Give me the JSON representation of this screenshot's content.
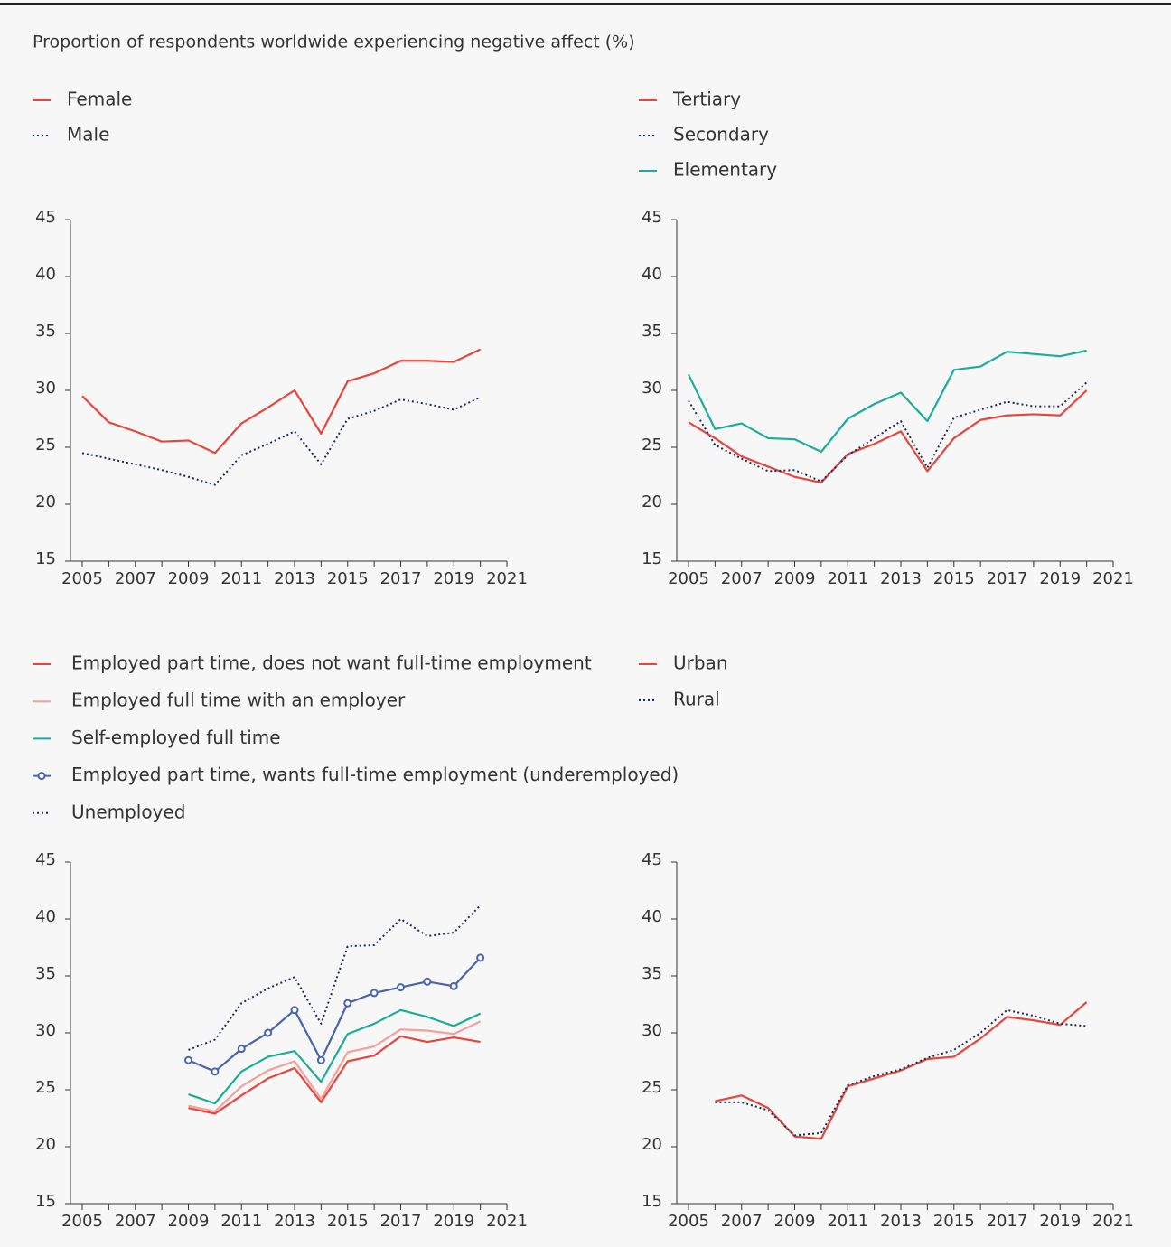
{
  "title": "Proportion of respondents worldwide experiencing negative affect (%)",
  "chart_data": [
    {
      "type": "line",
      "x": [
        2005,
        2006,
        2007,
        2008,
        2009,
        2010,
        2011,
        2012,
        2013,
        2014,
        2015,
        2016,
        2017,
        2018,
        2019,
        2020
      ],
      "series": [
        {
          "name": "Female",
          "color": "#e8453c",
          "dash": "solid",
          "values": [
            29.5,
            27.2,
            26.4,
            25.5,
            25.6,
            24.5,
            27.1,
            28.5,
            30.0,
            26.2,
            30.8,
            31.5,
            32.6,
            32.6,
            32.5,
            33.6
          ]
        },
        {
          "name": "Male",
          "color": "#1f2a5c",
          "dash": "dotted",
          "values": [
            24.5,
            24.0,
            23.5,
            23.0,
            22.4,
            21.7,
            24.3,
            25.3,
            26.4,
            23.5,
            27.5,
            28.2,
            29.2,
            28.8,
            28.3,
            29.4
          ]
        }
      ],
      "xlim": [
        2005,
        2021
      ],
      "xticks": [
        2005,
        2007,
        2009,
        2011,
        2013,
        2015,
        2017,
        2019,
        2021
      ],
      "ylim": [
        15,
        45
      ],
      "yticks": [
        15,
        20,
        25,
        30,
        35,
        40,
        45
      ]
    },
    {
      "type": "line",
      "x": [
        2005,
        2006,
        2007,
        2008,
        2009,
        2010,
        2011,
        2012,
        2013,
        2014,
        2015,
        2016,
        2017,
        2018,
        2019,
        2020
      ],
      "series": [
        {
          "name": "Tertiary",
          "color": "#e8453c",
          "dash": "solid",
          "values": [
            27.2,
            25.8,
            24.2,
            23.3,
            22.4,
            21.9,
            24.4,
            25.3,
            26.4,
            22.9,
            25.8,
            27.4,
            27.8,
            27.9,
            27.8,
            30.0
          ]
        },
        {
          "name": "Secondary",
          "color": "#1f2a5c",
          "dash": "dotted",
          "values": [
            29.1,
            25.2,
            24.0,
            22.9,
            23.0,
            22.0,
            24.3,
            25.8,
            27.3,
            23.2,
            27.6,
            28.3,
            29.0,
            28.6,
            28.6,
            30.7
          ]
        },
        {
          "name": "Elementary",
          "color": "#1aaf93",
          "dash": "solid",
          "values": [
            31.4,
            26.6,
            27.1,
            25.8,
            25.7,
            24.6,
            27.5,
            28.8,
            29.8,
            27.3,
            31.8,
            32.1,
            33.4,
            33.2,
            33.0,
            33.5
          ]
        }
      ],
      "xlim": [
        2005,
        2021
      ],
      "xticks": [
        2005,
        2007,
        2009,
        2011,
        2013,
        2015,
        2017,
        2019,
        2021
      ],
      "ylim": [
        15,
        45
      ],
      "yticks": [
        15,
        20,
        25,
        30,
        35,
        40,
        45
      ]
    },
    {
      "type": "line",
      "x": [
        2009,
        2010,
        2011,
        2012,
        2013,
        2014,
        2015,
        2016,
        2017,
        2018,
        2019,
        2020
      ],
      "series": [
        {
          "name": "Employed part time, does not want full-time employment",
          "color": "#e8453c",
          "dash": "solid",
          "values": [
            23.4,
            22.9,
            24.5,
            26.0,
            26.9,
            23.9,
            27.5,
            28.0,
            29.7,
            29.2,
            29.6,
            29.2
          ]
        },
        {
          "name": "Employed full time with an employer",
          "color": "#f5a09a",
          "dash": "solid",
          "values": [
            23.6,
            23.1,
            25.3,
            26.7,
            27.5,
            24.2,
            28.3,
            28.8,
            30.3,
            30.2,
            29.9,
            31.0
          ]
        },
        {
          "name": "Self-employed full time",
          "color": "#1aaf93",
          "dash": "solid",
          "values": [
            24.6,
            23.8,
            26.6,
            27.9,
            28.4,
            25.7,
            29.9,
            30.8,
            32.0,
            31.4,
            30.6,
            31.7
          ]
        },
        {
          "name": "Employed part time, wants full-time employment (underemployed)",
          "color": "#4a63b0",
          "dash": "solid",
          "marker": "circle",
          "values": [
            27.6,
            26.6,
            28.6,
            30.0,
            32.0,
            27.6,
            32.6,
            33.5,
            34.0,
            34.5,
            34.1,
            36.6
          ]
        },
        {
          "name": "Unemployed",
          "color": "#1f2a5c",
          "dash": "dotted",
          "values": [
            28.5,
            29.4,
            32.6,
            33.9,
            34.9,
            30.8,
            37.6,
            37.7,
            40.0,
            38.5,
            38.8,
            41.2
          ]
        }
      ],
      "xlim": [
        2005,
        2021
      ],
      "xticks": [
        2005,
        2007,
        2009,
        2011,
        2013,
        2015,
        2017,
        2019,
        2021
      ],
      "ylim": [
        15,
        45
      ],
      "yticks": [
        15,
        20,
        25,
        30,
        35,
        40,
        45
      ]
    },
    {
      "type": "line",
      "x": [
        2006,
        2007,
        2008,
        2009,
        2010,
        2011,
        2012,
        2013,
        2014,
        2015,
        2016,
        2017,
        2018,
        2019,
        2020
      ],
      "series": [
        {
          "name": "Urban",
          "color": "#e8453c",
          "dash": "solid",
          "values": [
            24.0,
            24.5,
            23.4,
            20.9,
            20.7,
            25.3,
            26.0,
            26.7,
            27.7,
            27.9,
            29.5,
            31.4,
            31.1,
            30.7,
            32.7
          ]
        },
        {
          "name": "Rural",
          "color": "#1f2a5c",
          "dash": "dotted",
          "values": [
            23.9,
            23.9,
            23.2,
            21.0,
            21.2,
            25.4,
            26.2,
            26.8,
            27.8,
            28.5,
            30.0,
            32.0,
            31.5,
            30.8,
            30.6
          ]
        }
      ],
      "xlim": [
        2005,
        2021
      ],
      "xticks": [
        2005,
        2007,
        2009,
        2011,
        2013,
        2015,
        2017,
        2019,
        2021
      ],
      "ylim": [
        15,
        45
      ],
      "yticks": [
        15,
        20,
        25,
        30,
        35,
        40,
        45
      ]
    }
  ]
}
